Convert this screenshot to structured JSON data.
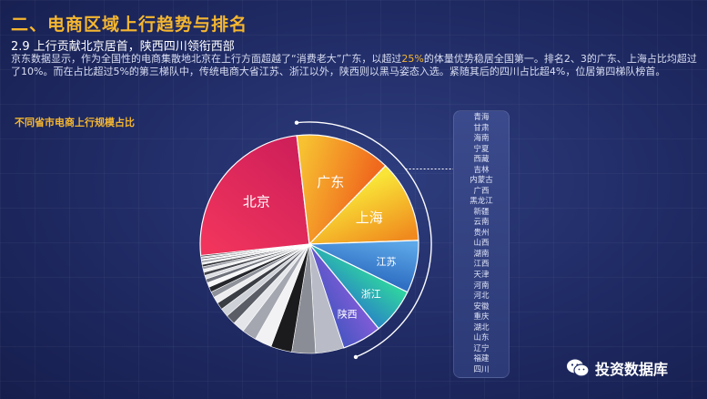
{
  "header": {
    "title": "二、电商区域上行趋势与排名",
    "subtitle": "2.9 上行贡献北京居首，陕西四川领衔西部"
  },
  "body": {
    "text_before": "京东数据显示，作为全国性的电商集散地北京在上行方面超越了“消费老大”广东，以超过",
    "highlight": "25%",
    "text_after": "的体量优势稳居全国第一。排名2、3的广东、上海占比均超过了10%。而在占比超过5%的第三梯队中，传统电商大省江苏、浙江以外，陕西则以黑马姿态入选。紧随其后的四川占比超4%，位居第四梯队榜首。"
  },
  "watermark": {
    "text": "投资数据库",
    "icon": "wechat-icon"
  },
  "chart_data": {
    "type": "pie",
    "title": "不同省市电商上行规模占比",
    "slices": [
      {
        "label": "北京",
        "value": 25.5,
        "color": "#e8235a"
      },
      {
        "label": "广东",
        "value": 14.5,
        "color": "#f4a320"
      },
      {
        "label": "上海",
        "value": 12.5,
        "color": "#f2c523"
      },
      {
        "label": "江苏",
        "value": 8.0,
        "color": "#3f8fd6"
      },
      {
        "label": "浙江",
        "value": 7.0,
        "color": "#33b8a8"
      },
      {
        "label": "陕西",
        "value": 6.0,
        "color": "#6a52c4"
      },
      {
        "label": "四川",
        "value": 4.3,
        "color": "#b9bcc6"
      },
      {
        "label": "福建",
        "value": 3.6,
        "color": "#8a8d96"
      },
      {
        "label": "辽宁",
        "value": 3.2,
        "color": "#1b1b1e"
      },
      {
        "label": "山东",
        "value": 2.6,
        "color": "#f2f2f4"
      },
      {
        "label": "湖北",
        "value": 2.2,
        "color": "#a4a7b0"
      },
      {
        "label": "重庆",
        "value": 1.8,
        "color": "#e4e6ea"
      },
      {
        "label": "安徽",
        "value": 1.5,
        "color": "#5a5d66"
      },
      {
        "label": "河北",
        "value": 1.3,
        "color": "#cfd1d8"
      },
      {
        "label": "河南",
        "value": 1.1,
        "color": "#3b3d44"
      },
      {
        "label": "天津",
        "value": 1.0,
        "color": "#ededf0"
      },
      {
        "label": "江西",
        "value": 0.9,
        "color": "#8e9199"
      },
      {
        "label": "湖南",
        "value": 0.8,
        "color": "#26272c"
      },
      {
        "label": "山西",
        "value": 0.7,
        "color": "#f6f6f8"
      },
      {
        "label": "贵州",
        "value": 0.6,
        "color": "#6e717a"
      },
      {
        "label": "云南",
        "value": 0.55,
        "color": "#dcdde2"
      },
      {
        "label": "新疆",
        "value": 0.5,
        "color": "#44464d"
      },
      {
        "label": "黑龙江",
        "value": 0.45,
        "color": "#f0f0f2"
      },
      {
        "label": "广西",
        "value": 0.4,
        "color": "#9b9ea6"
      },
      {
        "label": "内蒙古",
        "value": 0.35,
        "color": "#2f3036"
      },
      {
        "label": "吉林",
        "value": 0.3,
        "color": "#e8e9ec"
      },
      {
        "label": "西藏",
        "value": 0.25,
        "color": "#777a82"
      },
      {
        "label": "宁夏",
        "value": 0.2,
        "color": "#f7f7f9"
      },
      {
        "label": "海南",
        "value": 0.2,
        "color": "#55575e"
      },
      {
        "label": "甘肃",
        "value": 0.2,
        "color": "#d6d7dc"
      },
      {
        "label": "青海",
        "value": 0.2,
        "color": "#3a3b41"
      }
    ],
    "inside_labels": [
      "北京",
      "广东",
      "上海",
      "江苏",
      "浙江",
      "陕西"
    ],
    "legend_list": [
      "青海",
      "甘肃",
      "海南",
      "宁夏",
      "西藏",
      "吉林",
      "内蒙古",
      "广西",
      "黑龙江",
      "新疆",
      "云南",
      "贵州",
      "山西",
      "湖南",
      "江西",
      "天津",
      "河南",
      "河北",
      "安徽",
      "重庆",
      "湖北",
      "山东",
      "辽宁",
      "福建",
      "四川"
    ]
  }
}
